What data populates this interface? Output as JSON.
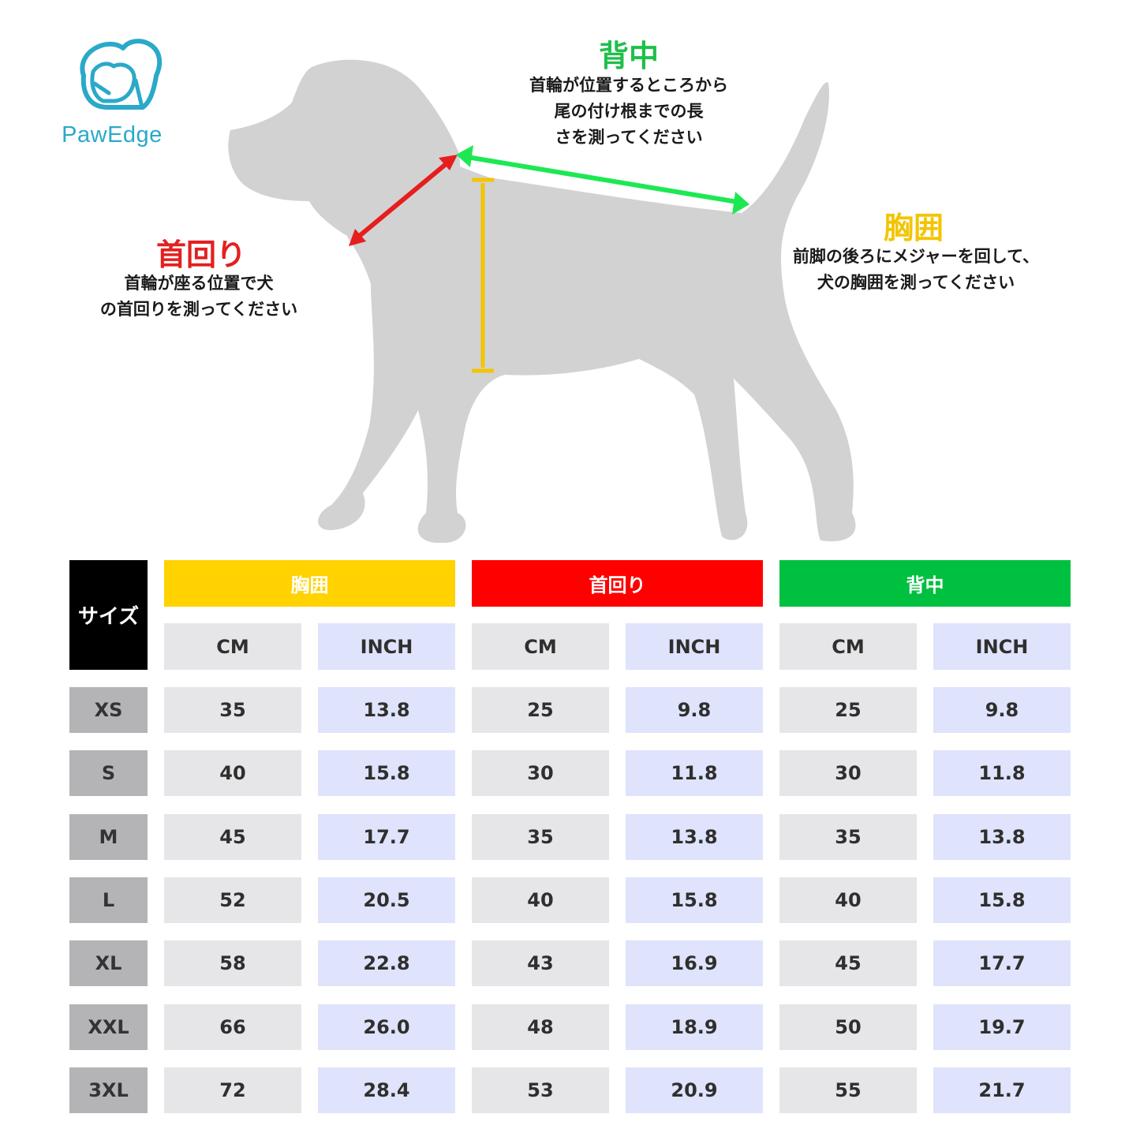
{
  "brand": {
    "name": "PawEdge",
    "color": "#2aa9c9"
  },
  "annotations": {
    "back": {
      "title": "背中",
      "description": "首輪が位置するところから\n尾の付け根までの長\nさを測ってください",
      "color": "#1fbf4a"
    },
    "neck": {
      "title": "首回り",
      "description": "首輪が座る位置で犬\nの首回りを測ってください",
      "color": "#e32020"
    },
    "chest": {
      "title": "胸囲",
      "description": "前脚の後ろにメジャーを回して、\n犬の胸囲を測ってください",
      "color": "#f2c500"
    }
  },
  "table": {
    "size_header": "サイズ",
    "groups": [
      {
        "label": "胸囲",
        "color": "#ffd200"
      },
      {
        "label": "首回り",
        "color": "#ff0000"
      },
      {
        "label": "背中",
        "color": "#00c040"
      }
    ],
    "unit_cm": "CM",
    "unit_inch": "INCH",
    "rows": [
      {
        "size": "XS",
        "values": [
          "35",
          "13.8",
          "25",
          "9.8",
          "25",
          "9.8"
        ]
      },
      {
        "size": "S",
        "values": [
          "40",
          "15.8",
          "30",
          "11.8",
          "30",
          "11.8"
        ]
      },
      {
        "size": "M",
        "values": [
          "45",
          "17.7",
          "35",
          "13.8",
          "35",
          "13.8"
        ]
      },
      {
        "size": "L",
        "values": [
          "52",
          "20.5",
          "40",
          "15.8",
          "40",
          "15.8"
        ]
      },
      {
        "size": "XL",
        "values": [
          "58",
          "22.8",
          "43",
          "16.9",
          "45",
          "17.7"
        ]
      },
      {
        "size": "XXL",
        "values": [
          "66",
          "26.0",
          "48",
          "18.9",
          "50",
          "19.7"
        ]
      },
      {
        "size": "3XL",
        "values": [
          "72",
          "28.4",
          "53",
          "20.9",
          "55",
          "21.7"
        ]
      }
    ]
  }
}
